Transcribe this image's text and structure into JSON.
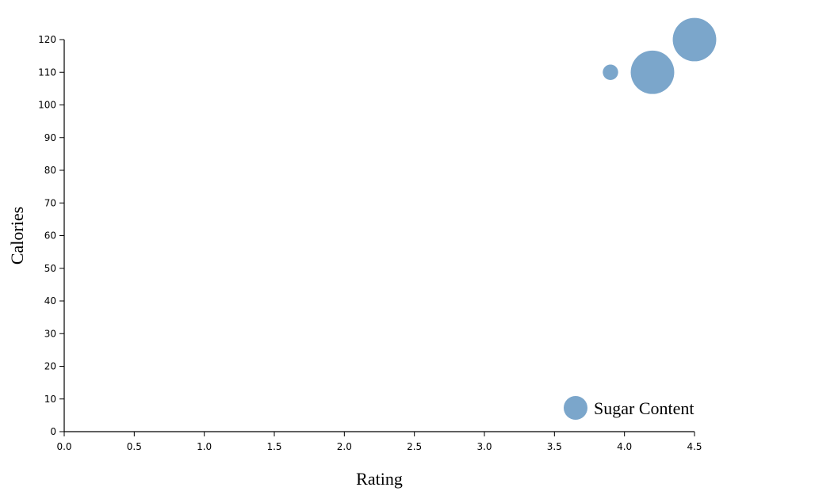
{
  "chart_data": {
    "type": "scatter",
    "xlabel": "Rating",
    "ylabel": "Calories",
    "xlim": [
      0,
      4.5
    ],
    "ylim": [
      0,
      120
    ],
    "x_ticks": [
      "0.0",
      "0.5",
      "1.0",
      "1.5",
      "2.0",
      "2.5",
      "3.0",
      "3.5",
      "4.0",
      "4.5"
    ],
    "y_ticks": [
      "0",
      "10",
      "20",
      "30",
      "40",
      "50",
      "60",
      "70",
      "80",
      "90",
      "100",
      "110",
      "120"
    ],
    "grid": false,
    "legend": {
      "label": "Sugar Content",
      "placement": "bottom-right"
    },
    "color": "#7ba6cb",
    "series": [
      {
        "name": "Sugar Content",
        "points": [
          {
            "x": 3.9,
            "y": 110,
            "size": 1
          },
          {
            "x": 4.2,
            "y": 110,
            "size": 8
          },
          {
            "x": 4.5,
            "y": 120,
            "size": 8
          }
        ]
      }
    ]
  }
}
